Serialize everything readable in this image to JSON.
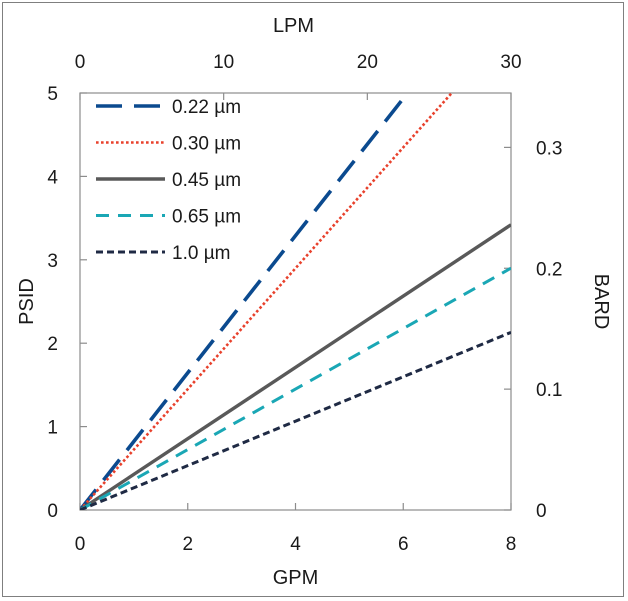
{
  "chart_data": {
    "type": "line",
    "title": "",
    "xlabel": "GPM",
    "ylabel": "PSID",
    "x2label": "LPM",
    "y2label": "BARD",
    "xlim": [
      0,
      8
    ],
    "ylim": [
      0,
      5
    ],
    "x2lim": [
      0,
      30
    ],
    "y2lim": [
      0,
      0.345
    ],
    "xticks": [
      "0",
      "2",
      "4",
      "6",
      "8"
    ],
    "yticks": [
      "0",
      "1",
      "2",
      "3",
      "4",
      "5"
    ],
    "x2ticks": [
      "0",
      "10",
      "20",
      "30"
    ],
    "y2ticks": [
      "0",
      "0.1",
      "0.2",
      "0.3"
    ],
    "grid": false,
    "legend_position": "top-left",
    "series": [
      {
        "name": "0.22 µm",
        "color": "#0b4a8f",
        "dash": "long-dash",
        "x": [
          0,
          6.08
        ],
        "y": [
          0,
          5.0
        ]
      },
      {
        "name": "0.30 µm",
        "color": "#e8412c",
        "dash": "dotted",
        "x": [
          0,
          6.9
        ],
        "y": [
          0,
          5.0
        ]
      },
      {
        "name": "0.45 µm",
        "color": "#595959",
        "dash": "solid",
        "x": [
          0,
          8
        ],
        "y": [
          0,
          3.42
        ]
      },
      {
        "name": "0.65 µm",
        "color": "#1aa7b5",
        "dash": "dashed",
        "x": [
          0,
          8
        ],
        "y": [
          0,
          2.9
        ]
      },
      {
        "name": "1.0 µm",
        "color": "#1f2a44",
        "dash": "short-dash",
        "x": [
          0,
          8
        ],
        "y": [
          0,
          2.13
        ]
      }
    ]
  }
}
